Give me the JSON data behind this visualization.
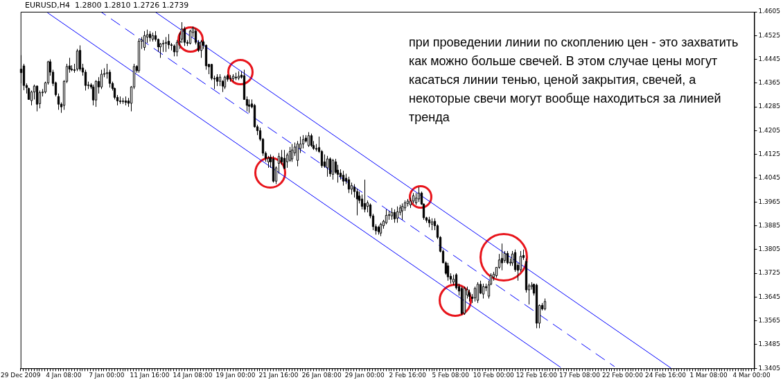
{
  "chart_data": {
    "type": "candlestick",
    "title": "EURUSD,H4  1.2800 1.2810 1.2726 1.2739",
    "annotations": [
      "при проведении линии по скоплению цен - это захватить как можно больше свечей. В этом случае цены могут касаться линии тенью, ценой закрытия, свечей, а некоторые свечи могут вообще находиться за линией тренда"
    ],
    "ylim": [
      1.3405,
      1.4605
    ],
    "yticks": [
      1.3405,
      1.3485,
      1.3565,
      1.3645,
      1.3725,
      1.3805,
      1.3885,
      1.3965,
      1.4045,
      1.4125,
      1.4205,
      1.4285,
      1.4365,
      1.4445,
      1.4525,
      1.4605
    ],
    "categories": [
      "29 Dec 2009",
      null,
      null,
      null,
      null,
      null,
      null,
      null,
      null,
      null,
      null,
      null,
      null,
      null,
      null,
      null,
      "4 Jan 08:00",
      null,
      null,
      null,
      null,
      null,
      null,
      null,
      null,
      null,
      null,
      null,
      null,
      null,
      null,
      null,
      "7 Jan 00:00",
      null,
      null,
      null,
      null,
      null,
      null,
      null,
      null,
      null,
      null,
      null,
      null,
      null,
      null,
      null,
      "11 Jan 16:00",
      null,
      null,
      null,
      null,
      null,
      null,
      null,
      null,
      null,
      null,
      null,
      null,
      null,
      null,
      null,
      "14 Jan 08:00",
      null,
      null,
      null,
      null,
      null,
      null,
      null,
      null,
      null,
      null,
      null,
      null,
      null,
      null,
      null,
      "19 Jan 00:00",
      null,
      null,
      null,
      null,
      null,
      null,
      null,
      null,
      null,
      null,
      null,
      null,
      null,
      null,
      null,
      "21 Jan 16:00",
      null,
      null,
      null,
      null,
      null,
      null,
      null,
      null,
      null,
      null,
      null,
      null,
      null,
      null,
      null,
      "26 Jan 08:00",
      null,
      null,
      null,
      null,
      null,
      null,
      null,
      null,
      null,
      null,
      null,
      null,
      null,
      null,
      null,
      "29 Jan 00:00",
      null,
      null,
      null,
      null,
      null,
      null,
      null,
      null,
      null,
      null,
      null,
      null,
      null,
      null,
      null,
      "2 Feb 16:00",
      null,
      null,
      null,
      null,
      null,
      null,
      null,
      null,
      null,
      null,
      null,
      null,
      null,
      null,
      null,
      "5 Feb 08:00",
      null,
      null,
      null,
      null,
      null,
      null,
      null,
      null,
      null,
      null,
      null,
      null,
      null,
      null,
      null,
      "10 Feb 00:00",
      null,
      null,
      null,
      null,
      null,
      null,
      null,
      null,
      null,
      null,
      null,
      null,
      null,
      null,
      null,
      "12 Feb 16:00",
      null,
      null,
      null,
      null,
      null,
      null,
      null,
      null,
      null,
      null,
      null,
      null,
      null,
      null,
      null,
      "17 Feb 08:00",
      null,
      null,
      null,
      null,
      null,
      null,
      null,
      null,
      null,
      null,
      null,
      null,
      null,
      null,
      null,
      "22 Feb 00:00",
      null,
      null,
      null,
      null,
      null,
      null,
      null,
      null,
      null,
      null,
      null,
      null,
      null,
      null,
      null,
      "24 Feb 16:00",
      null,
      null,
      null,
      null,
      null,
      null,
      null,
      null,
      null,
      null,
      null,
      null,
      null,
      null,
      null,
      "1 Mar 08:00",
      null,
      null,
      null,
      null,
      null,
      null,
      null,
      null,
      null,
      null,
      null,
      null,
      null,
      null,
      null,
      "4 Mar 00:00",
      null
    ],
    "ohlc": [
      [
        1.4412,
        1.4459,
        1.4364,
        1.44
      ],
      [
        1.4423,
        1.443,
        1.4341,
        1.4357
      ],
      [
        1.4357,
        1.4364,
        1.433,
        1.435
      ],
      [
        1.4347,
        1.435,
        1.431,
        1.431
      ],
      [
        1.4306,
        1.434,
        1.429,
        1.4335
      ],
      [
        1.4335,
        1.436,
        1.431,
        1.4355
      ],
      [
        1.4355,
        1.4357,
        1.427,
        1.4294
      ],
      [
        1.4296,
        1.434,
        1.428,
        1.4333
      ],
      [
        1.4333,
        1.4345,
        1.432,
        1.4335
      ],
      [
        1.4335,
        1.437,
        1.433,
        1.4366
      ],
      [
        1.4366,
        1.444,
        1.436,
        1.4437
      ],
      [
        1.4437,
        1.4445,
        1.439,
        1.4402
      ],
      [
        1.4402,
        1.441,
        1.4355,
        1.4364
      ],
      [
        1.4366,
        1.437,
        1.432,
        1.4326
      ],
      [
        1.432,
        1.433,
        1.4275,
        1.4294
      ],
      [
        1.4294,
        1.43,
        1.4265,
        1.4285
      ],
      [
        1.429,
        1.4375,
        1.4275,
        1.4371
      ],
      [
        1.4371,
        1.443,
        1.4365,
        1.4421
      ],
      [
        1.4423,
        1.445,
        1.44,
        1.4412
      ],
      [
        1.4412,
        1.4425,
        1.4405,
        1.441
      ],
      [
        1.441,
        1.443,
        1.44,
        1.4408
      ],
      [
        1.4412,
        1.448,
        1.4405,
        1.4473
      ],
      [
        1.4475,
        1.4492,
        1.4405,
        1.4412
      ],
      [
        1.4416,
        1.443,
        1.439,
        1.4402
      ],
      [
        1.4402,
        1.441,
        1.434,
        1.4357
      ],
      [
        1.4357,
        1.437,
        1.4345,
        1.4359
      ],
      [
        1.4359,
        1.4365,
        1.4345,
        1.4352
      ],
      [
        1.4352,
        1.436,
        1.429,
        1.4308
      ],
      [
        1.4308,
        1.4375,
        1.4285,
        1.4371
      ],
      [
        1.4371,
        1.4385,
        1.433,
        1.4352
      ],
      [
        1.4352,
        1.441,
        1.4345,
        1.4395
      ],
      [
        1.4395,
        1.4415,
        1.4385,
        1.4397
      ],
      [
        1.4397,
        1.443,
        1.438,
        1.44
      ],
      [
        1.4402,
        1.441,
        1.435,
        1.4364
      ],
      [
        1.4364,
        1.437,
        1.434,
        1.4347
      ],
      [
        1.4347,
        1.435,
        1.431,
        1.4317
      ],
      [
        1.4317,
        1.4325,
        1.429,
        1.4305
      ],
      [
        1.4305,
        1.432,
        1.4295,
        1.4303
      ],
      [
        1.4303,
        1.4315,
        1.4295,
        1.4305
      ],
      [
        1.4305,
        1.432,
        1.429,
        1.43
      ],
      [
        1.4305,
        1.4315,
        1.4285,
        1.4297
      ],
      [
        1.4297,
        1.4355,
        1.427,
        1.4352
      ],
      [
        1.4352,
        1.443,
        1.4345,
        1.4421
      ],
      [
        1.4421,
        1.4425,
        1.44,
        1.4407
      ],
      [
        1.4407,
        1.4515,
        1.44,
        1.4506
      ],
      [
        1.4506,
        1.452,
        1.448,
        1.4511
      ],
      [
        1.4485,
        1.454,
        1.4475,
        1.4525
      ],
      [
        1.452,
        1.4545,
        1.45,
        1.4528
      ],
      [
        1.453,
        1.454,
        1.4505,
        1.4518
      ],
      [
        1.4513,
        1.4535,
        1.4505,
        1.4525
      ],
      [
        1.4525,
        1.454,
        1.4505,
        1.4512
      ],
      [
        1.4512,
        1.4515,
        1.447,
        1.4487
      ],
      [
        1.4487,
        1.45,
        1.445,
        1.4497
      ],
      [
        1.4497,
        1.451,
        1.447,
        1.4499
      ],
      [
        1.4499,
        1.452,
        1.447,
        1.4502
      ],
      [
        1.4506,
        1.453,
        1.448,
        1.4494
      ],
      [
        1.4494,
        1.45,
        1.4475,
        1.4492
      ],
      [
        1.449,
        1.4495,
        1.4455,
        1.447
      ],
      [
        1.447,
        1.451,
        1.4455,
        1.4502
      ],
      [
        1.4502,
        1.4535,
        1.448,
        1.4506
      ],
      [
        1.4513,
        1.457,
        1.45,
        1.4547
      ],
      [
        1.4547,
        1.4555,
        1.449,
        1.4502
      ],
      [
        1.4502,
        1.451,
        1.449,
        1.4499
      ],
      [
        1.4499,
        1.4545,
        1.4495,
        1.454
      ],
      [
        1.4535,
        1.4555,
        1.452,
        1.455
      ],
      [
        1.454,
        1.4548,
        1.4495,
        1.4502
      ],
      [
        1.4502,
        1.451,
        1.447,
        1.4475
      ],
      [
        1.4475,
        1.451,
        1.445,
        1.4504
      ],
      [
        1.4504,
        1.451,
        1.448,
        1.4492
      ],
      [
        1.4492,
        1.4495,
        1.441,
        1.4423
      ],
      [
        1.4428,
        1.443,
        1.4395,
        1.442
      ],
      [
        1.4428,
        1.443,
        1.4375,
        1.4381
      ],
      [
        1.4381,
        1.439,
        1.4345,
        1.438
      ],
      [
        1.4385,
        1.4395,
        1.4355,
        1.4371
      ],
      [
        1.4371,
        1.4395,
        1.4355,
        1.4385
      ],
      [
        1.4371,
        1.4375,
        1.4335,
        1.4355
      ],
      [
        1.4352,
        1.439,
        1.4345,
        1.4385
      ],
      [
        1.439,
        1.4395,
        1.437,
        1.4378
      ],
      [
        1.438,
        1.4392,
        1.437,
        1.4382
      ],
      [
        1.438,
        1.4395,
        1.437,
        1.4388
      ],
      [
        1.4385,
        1.44,
        1.4375,
        1.4383
      ],
      [
        1.4382,
        1.4405,
        1.4375,
        1.4388
      ],
      [
        1.4392,
        1.4405,
        1.438,
        1.4385
      ],
      [
        1.439,
        1.441,
        1.431,
        1.431
      ],
      [
        1.431,
        1.432,
        1.427,
        1.429
      ],
      [
        1.4292,
        1.431,
        1.4265,
        1.4287
      ],
      [
        1.4295,
        1.431,
        1.428,
        1.4285
      ],
      [
        1.429,
        1.4295,
        1.4215,
        1.4218
      ],
      [
        1.4218,
        1.4225,
        1.419,
        1.4205
      ],
      [
        1.4205,
        1.4215,
        1.417,
        1.4176
      ],
      [
        1.4176,
        1.418,
        1.412,
        1.4129
      ],
      [
        1.4129,
        1.4135,
        1.41,
        1.4112
      ],
      [
        1.41,
        1.412,
        1.408,
        1.4112
      ],
      [
        1.4115,
        1.4125,
        1.408,
        1.41
      ],
      [
        1.411,
        1.412,
        1.403,
        1.4035
      ],
      [
        1.4035,
        1.4085,
        1.4025,
        1.408
      ],
      [
        1.4095,
        1.413,
        1.406,
        1.4118
      ],
      [
        1.4115,
        1.414,
        1.409,
        1.41
      ],
      [
        1.4112,
        1.414,
        1.4075,
        1.4078
      ],
      [
        1.41,
        1.413,
        1.408,
        1.4123
      ],
      [
        1.4105,
        1.415,
        1.41,
        1.4135
      ],
      [
        1.411,
        1.416,
        1.41,
        1.414
      ],
      [
        1.413,
        1.4165,
        1.412,
        1.415
      ],
      [
        1.4105,
        1.417,
        1.4085,
        1.416
      ],
      [
        1.4145,
        1.4185,
        1.413,
        1.416
      ],
      [
        1.416,
        1.419,
        1.4145,
        1.4175
      ],
      [
        1.418,
        1.419,
        1.4165,
        1.417
      ],
      [
        1.4155,
        1.42,
        1.415,
        1.4188
      ],
      [
        1.4188,
        1.4195,
        1.415,
        1.4155
      ],
      [
        1.4155,
        1.417,
        1.414,
        1.4145
      ],
      [
        1.4145,
        1.416,
        1.4135,
        1.4143
      ],
      [
        1.4148,
        1.4185,
        1.413,
        1.4135
      ],
      [
        1.4135,
        1.414,
        1.408,
        1.4087
      ],
      [
        1.41,
        1.4125,
        1.408,
        1.4085
      ],
      [
        1.408,
        1.412,
        1.405,
        1.411
      ],
      [
        1.411,
        1.4115,
        1.405,
        1.406
      ],
      [
        1.4058,
        1.411,
        1.404,
        1.4105
      ],
      [
        1.41,
        1.411,
        1.406,
        1.4065
      ],
      [
        1.4072,
        1.409,
        1.403,
        1.4058
      ],
      [
        1.4062,
        1.4075,
        1.404,
        1.405
      ],
      [
        1.4055,
        1.407,
        1.402,
        1.4035
      ],
      [
        1.4045,
        1.406,
        1.4025,
        1.4035
      ],
      [
        1.404,
        1.405,
        1.3995,
        1.4008
      ],
      [
        1.4008,
        1.403,
        1.399,
        1.402
      ],
      [
        1.4015,
        1.4025,
        1.398,
        1.4
      ],
      [
        1.4,
        1.401,
        1.392,
        1.3975
      ],
      [
        1.3985,
        1.4,
        1.396,
        1.397
      ],
      [
        1.3975,
        1.399,
        1.394,
        1.395
      ],
      [
        1.396,
        1.404,
        1.393,
        1.394
      ],
      [
        1.395,
        1.397,
        1.393,
        1.3962
      ],
      [
        1.3955,
        1.396,
        1.391,
        1.3918
      ],
      [
        1.3918,
        1.3925,
        1.387,
        1.3882
      ],
      [
        1.3882,
        1.389,
        1.3855,
        1.3868
      ],
      [
        1.388,
        1.3885,
        1.3855,
        1.3865
      ],
      [
        1.386,
        1.3895,
        1.385,
        1.389
      ],
      [
        1.3885,
        1.3905,
        1.3875,
        1.39
      ],
      [
        1.3895,
        1.394,
        1.389,
        1.392
      ],
      [
        1.392,
        1.3935,
        1.3905,
        1.3922
      ],
      [
        1.3918,
        1.3945,
        1.3905,
        1.393
      ],
      [
        1.393,
        1.394,
        1.3895,
        1.3908
      ],
      [
        1.391,
        1.395,
        1.3895,
        1.3932
      ],
      [
        1.393,
        1.3955,
        1.392,
        1.3945
      ],
      [
        1.3935,
        1.396,
        1.3905,
        1.395
      ],
      [
        1.3945,
        1.397,
        1.3935,
        1.3962
      ],
      [
        1.396,
        1.3975,
        1.395,
        1.3968
      ],
      [
        1.3955,
        1.398,
        1.3945,
        1.3968
      ],
      [
        1.3968,
        1.3995,
        1.396,
        1.3986
      ],
      [
        1.3962,
        1.3995,
        1.3955,
        1.3978
      ],
      [
        1.3975,
        1.4015,
        1.3965,
        1.3995
      ],
      [
        1.3995,
        1.4,
        1.3955,
        1.3958
      ],
      [
        1.3958,
        1.396,
        1.3905,
        1.3912
      ],
      [
        1.3912,
        1.3915,
        1.3895,
        1.3903
      ],
      [
        1.3905,
        1.3915,
        1.388,
        1.3895
      ],
      [
        1.389,
        1.391,
        1.387,
        1.3898
      ],
      [
        1.39,
        1.391,
        1.387,
        1.3885
      ],
      [
        1.3885,
        1.389,
        1.384,
        1.3846
      ],
      [
        1.3846,
        1.385,
        1.3795,
        1.3799
      ],
      [
        1.3799,
        1.3805,
        1.376,
        1.376
      ],
      [
        1.376,
        1.3765,
        1.372,
        1.3725
      ],
      [
        1.375,
        1.376,
        1.37,
        1.3713
      ],
      [
        1.3715,
        1.3725,
        1.369,
        1.3705
      ],
      [
        1.3695,
        1.372,
        1.3685,
        1.3705
      ],
      [
        1.372,
        1.3725,
        1.367,
        1.3676
      ],
      [
        1.368,
        1.369,
        1.365,
        1.3665
      ],
      [
        1.3674,
        1.368,
        1.3585,
        1.359
      ],
      [
        1.359,
        1.368,
        1.3585,
        1.3674
      ],
      [
        1.3652,
        1.368,
        1.364,
        1.367
      ],
      [
        1.366,
        1.367,
        1.363,
        1.3647
      ],
      [
        1.3645,
        1.3655,
        1.3625,
        1.364
      ],
      [
        1.3642,
        1.368,
        1.363,
        1.3674
      ],
      [
        1.3634,
        1.3695,
        1.3625,
        1.3688
      ],
      [
        1.3688,
        1.37,
        1.3655,
        1.3658
      ],
      [
        1.3655,
        1.369,
        1.364,
        1.368
      ],
      [
        1.368,
        1.369,
        1.3665,
        1.3676
      ],
      [
        1.3648,
        1.37,
        1.364,
        1.3686
      ],
      [
        1.3688,
        1.3725,
        1.3685,
        1.3718
      ],
      [
        1.3712,
        1.373,
        1.37,
        1.3722
      ],
      [
        1.3717,
        1.3745,
        1.371,
        1.3745
      ],
      [
        1.3745,
        1.379,
        1.374,
        1.377
      ],
      [
        1.3775,
        1.3825,
        1.3735,
        1.376
      ],
      [
        1.3768,
        1.38,
        1.376,
        1.3792
      ],
      [
        1.3792,
        1.38,
        1.3755,
        1.376
      ],
      [
        1.376,
        1.3775,
        1.375,
        1.3762
      ],
      [
        1.376,
        1.38,
        1.375,
        1.379
      ],
      [
        1.3795,
        1.3805,
        1.373,
        1.3737
      ],
      [
        1.3752,
        1.376,
        1.37,
        1.3735
      ],
      [
        1.3737,
        1.38,
        1.373,
        1.3782
      ],
      [
        1.3785,
        1.3805,
        1.377,
        1.3778
      ],
      [
        1.3765,
        1.3775,
        1.366,
        1.3669
      ],
      [
        1.3669,
        1.369,
        1.362,
        1.3683
      ],
      [
        1.368,
        1.3695,
        1.367,
        1.3685
      ],
      [
        1.3688,
        1.369,
        1.365,
        1.3658
      ],
      [
        1.3685,
        1.369,
        1.354,
        1.3557
      ],
      [
        1.3557,
        1.362,
        1.354,
        1.3617
      ],
      [
        1.3617,
        1.3625,
        1.36,
        1.3605
      ],
      [
        1.3605,
        1.364,
        1.36,
        1.363
      ],
      null,
      null,
      null,
      null,
      null,
      null,
      null,
      null,
      null,
      null,
      null,
      null,
      null,
      null,
      null,
      null,
      null,
      null,
      null,
      null,
      null,
      null,
      null,
      null,
      null,
      null,
      null,
      null,
      null,
      null,
      null,
      null,
      null,
      null,
      null,
      null,
      null,
      null,
      null,
      null,
      null,
      null,
      null,
      null,
      null,
      null,
      null,
      null,
      null,
      null,
      null,
      null,
      null,
      null,
      null,
      null,
      null,
      null,
      null,
      null,
      null,
      null,
      null,
      null,
      null,
      null,
      null,
      null,
      null,
      null,
      null,
      null,
      null,
      null,
      null,
      null,
      null,
      null
    ],
    "series": [
      {
        "type": "line",
        "color": "#0000ff",
        "line_style": "solid",
        "values": [
          null,
          null,
          null,
          null,
          null,
          null,
          null,
          null,
          null,
          null,
          null,
          null,
          null,
          null,
          null,
          null,
          null,
          null,
          null,
          null,
          null,
          null,
          null,
          null,
          null,
          null,
          null,
          null,
          null,
          null,
          null,
          null,
          null,
          null,
          null,
          null,
          null,
          null,
          null,
          null,
          null,
          null,
          null,
          null,
          null,
          null,
          null,
          null,
          null,
          null,
          1.4605,
          null,
          null,
          null,
          null,
          null,
          null,
          null,
          null,
          null,
          null,
          null,
          null,
          null,
          null,
          null,
          null,
          null,
          null,
          null,
          null,
          null,
          null,
          null,
          null,
          null,
          null,
          null,
          null,
          null,
          null,
          null,
          null,
          null,
          null,
          null,
          null,
          null,
          null,
          null,
          null,
          null,
          null,
          null,
          null,
          null,
          null,
          null,
          null,
          null,
          null,
          null,
          null,
          null,
          null,
          null,
          null,
          null,
          null,
          null,
          null,
          null,
          null,
          null,
          null,
          null,
          null,
          null,
          null,
          null,
          null,
          null,
          null,
          null,
          null,
          null,
          null,
          null,
          null,
          null,
          null,
          null,
          null,
          null,
          null,
          null,
          null,
          null,
          null,
          null,
          null,
          null,
          null,
          null,
          null,
          null,
          null,
          null,
          null,
          null,
          null,
          null,
          null,
          null,
          null,
          null,
          null,
          null,
          null,
          null,
          null,
          null,
          null,
          null,
          null,
          null,
          null,
          null,
          null,
          null,
          null,
          null,
          null,
          null,
          null,
          null,
          null,
          null,
          null,
          null,
          null,
          null,
          null,
          null,
          null,
          null,
          null,
          null,
          null,
          null,
          null,
          null,
          null,
          null,
          null,
          null,
          null,
          null,
          null,
          null,
          null,
          null,
          null,
          null,
          null,
          null,
          null,
          null,
          null,
          null,
          null,
          null,
          null,
          null,
          null,
          null,
          null,
          null,
          null,
          null,
          null,
          null,
          null,
          null,
          null,
          null,
          null,
          null,
          null,
          null,
          null,
          null,
          null,
          null,
          null,
          null,
          null,
          null,
          null,
          null,
          null,
          null,
          1.3406,
          null,
          null,
          null,
          null,
          null,
          null,
          null,
          null,
          null,
          null,
          null,
          null,
          null,
          null,
          null,
          null,
          null,
          null,
          null,
          null,
          null,
          null,
          null,
          null,
          null,
          null,
          null,
          null,
          null,
          null,
          null
        ]
      },
      {
        "type": "line",
        "color": "#0000ff",
        "line_style": "solid",
        "values": [
          null,
          null,
          null,
          null,
          null,
          null,
          null,
          null,
          null,
          null,
          1.4602,
          null,
          null,
          null,
          null,
          null,
          null,
          null,
          null,
          null,
          null,
          null,
          null,
          null,
          null,
          null,
          null,
          null,
          null,
          null,
          null,
          null,
          null,
          null,
          null,
          null,
          null,
          null,
          null,
          null,
          null,
          null,
          null,
          null,
          null,
          null,
          null,
          null,
          null,
          null,
          null,
          null,
          null,
          null,
          null,
          null,
          null,
          null,
          null,
          null,
          null,
          null,
          null,
          null,
          null,
          null,
          null,
          null,
          null,
          null,
          null,
          null,
          null,
          null,
          null,
          null,
          null,
          null,
          null,
          null,
          null,
          null,
          null,
          null,
          null,
          null,
          null,
          null,
          null,
          null,
          null,
          null,
          null,
          null,
          null,
          null,
          null,
          null,
          null,
          null,
          null,
          null,
          null,
          null,
          null,
          null,
          null,
          null,
          null,
          null,
          null,
          null,
          null,
          null,
          null,
          null,
          null,
          null,
          null,
          null,
          null,
          null,
          null,
          null,
          null,
          null,
          null,
          null,
          null,
          null,
          null,
          null,
          null,
          null,
          null,
          null,
          null,
          null,
          null,
          null,
          null,
          null,
          null,
          null,
          null,
          null,
          null,
          null,
          null,
          null,
          null,
          null,
          null,
          null,
          null,
          null,
          null,
          null,
          null,
          null,
          null,
          null,
          null,
          null,
          null,
          null,
          null,
          null,
          null,
          null,
          null,
          null,
          null,
          null,
          null,
          null,
          null,
          null,
          null,
          null,
          null,
          null,
          null,
          null,
          null,
          null,
          null,
          null,
          null,
          null,
          null,
          null,
          null,
          null,
          null,
          null,
          null,
          null,
          null,
          null,
          null,
          1.3408,
          null,
          null,
          null,
          null,
          null,
          null,
          null,
          null,
          null,
          null,
          null,
          null,
          null,
          null,
          null,
          null,
          null,
          null,
          null,
          null,
          null,
          null,
          null,
          null,
          null,
          null,
          null,
          null,
          null,
          null,
          null,
          null,
          null,
          null,
          null,
          null,
          null,
          null,
          null,
          null,
          null,
          null,
          null,
          null,
          null,
          null,
          null,
          null,
          null,
          null,
          null,
          null,
          null,
          null,
          null,
          null,
          null,
          null,
          null,
          null,
          null,
          null,
          null,
          null,
          null,
          null,
          null,
          null,
          null,
          null,
          null,
          null
        ]
      },
      {
        "type": "line",
        "color": "#0000ff",
        "line_style": "dashed",
        "values": [
          null,
          null,
          null,
          null,
          null,
          null,
          null,
          null,
          null,
          null,
          null,
          null,
          null,
          null,
          null,
          null,
          null,
          null,
          null,
          null,
          null,
          null,
          null,
          null,
          null,
          null,
          null,
          null,
          null,
          null,
          1.4604,
          null,
          null,
          null,
          null,
          null,
          null,
          null,
          null,
          null,
          null,
          null,
          null,
          null,
          null,
          null,
          null,
          null,
          null,
          null,
          null,
          null,
          null,
          null,
          null,
          null,
          null,
          null,
          null,
          null,
          null,
          null,
          null,
          null,
          null,
          null,
          null,
          null,
          null,
          null,
          null,
          null,
          null,
          null,
          null,
          null,
          null,
          null,
          null,
          null,
          null,
          null,
          null,
          null,
          null,
          null,
          null,
          null,
          null,
          null,
          null,
          null,
          null,
          null,
          null,
          null,
          null,
          null,
          null,
          null,
          null,
          null,
          null,
          null,
          null,
          null,
          null,
          null,
          null,
          null,
          null,
          null,
          null,
          null,
          null,
          null,
          null,
          null,
          null,
          null,
          null,
          null,
          null,
          null,
          null,
          null,
          null,
          null,
          null,
          null,
          null,
          null,
          null,
          null,
          null,
          null,
          null,
          null,
          null,
          null,
          null,
          null,
          null,
          null,
          null,
          null,
          null,
          null,
          null,
          null,
          null,
          null,
          null,
          null,
          null,
          null,
          null,
          null,
          null,
          null,
          null,
          null,
          null,
          null,
          null,
          null,
          null,
          null,
          null,
          null,
          null,
          null,
          null,
          null,
          null,
          null,
          null,
          null,
          null,
          null,
          null,
          null,
          null,
          null,
          null,
          null,
          null,
          null,
          null,
          null,
          null,
          null,
          null,
          null,
          null,
          null,
          null,
          null,
          null,
          null,
          null,
          null,
          null,
          null,
          null,
          null,
          null,
          null,
          null,
          null,
          null,
          null,
          null,
          null,
          null,
          null,
          null,
          null,
          null,
          null,
          null,
          1.3411,
          null,
          null,
          null,
          null,
          null,
          null,
          null,
          null,
          null,
          null,
          null,
          null,
          null,
          null,
          null,
          null,
          null,
          null,
          null,
          null,
          null,
          null,
          null,
          null,
          null,
          null,
          null,
          null,
          null,
          null,
          null,
          null,
          null,
          null,
          null,
          null,
          null,
          null,
          null,
          null,
          null,
          null,
          null,
          null,
          null,
          null,
          null,
          null,
          null,
          null,
          null,
          null
        ]
      }
    ]
  }
}
